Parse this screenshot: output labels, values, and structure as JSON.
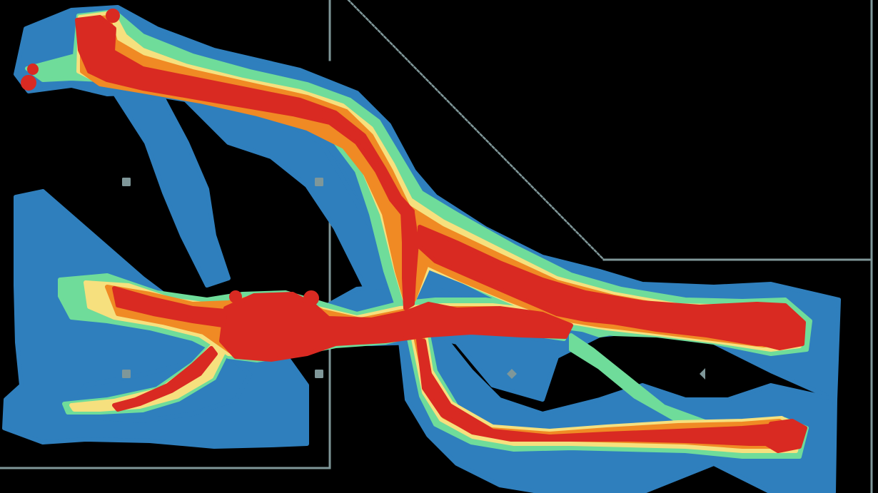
{
  "view": {
    "type": "movement-density-heatmap",
    "background_color": "#000000",
    "wall_color": "#7f9799",
    "marker_color": "#7f9799"
  },
  "heatmap": {
    "color_scale": [
      {
        "level": "low",
        "color": "#2f7fbd"
      },
      {
        "level": "low-mid",
        "color": "#6fdc9a"
      },
      {
        "level": "mid",
        "color": "#f6e07e"
      },
      {
        "level": "mid-high",
        "color": "#f08a24"
      },
      {
        "level": "high",
        "color": "#d92a22"
      }
    ]
  }
}
